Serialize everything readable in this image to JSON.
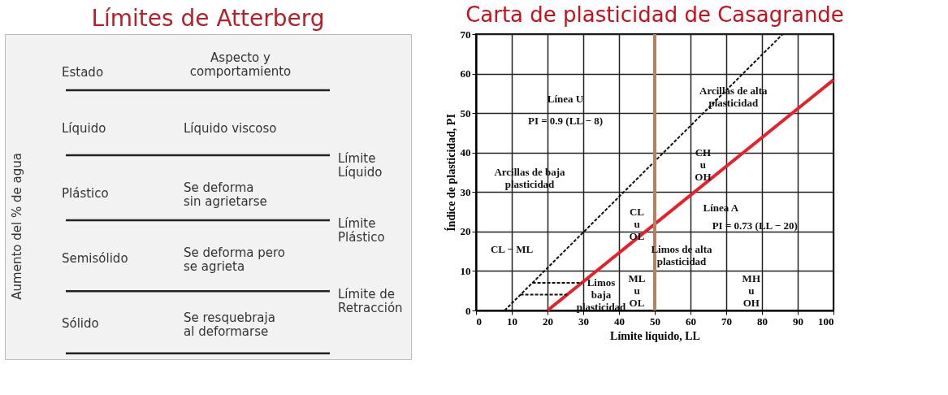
{
  "chart_data": [
    {
      "type": "other",
      "title": "Límites de Atterberg",
      "annotations": [
        "Estado",
        "Aspecto y\ncomportamiento",
        "Líquido",
        "Líquido viscoso",
        "Plástico",
        "Se deforma\nsin agrietarse",
        "Semisólido",
        "Se deforma pero\nse agrieta",
        "Sólido",
        "Se resquebraja\nal deformarse",
        "Límite\nLíquido",
        "Límite\nPlástico",
        "Límite de\nRetracción",
        "Aumento del % de agua"
      ]
    },
    {
      "type": "line",
      "title": "Carta de plasticidad de Casagrande",
      "xlabel": "Límite líquido, LL",
      "ylabel": "Índice de plasticidad, PI",
      "xlim": [
        0,
        100
      ],
      "xticks": [
        0,
        10,
        20,
        30,
        40,
        50,
        60,
        70,
        80,
        90,
        100
      ],
      "ylim": [
        0,
        70
      ],
      "yticks": [
        0,
        10,
        20,
        30,
        40,
        50,
        60,
        70
      ],
      "grid": true,
      "series": [
        {
          "color": "#e8202a",
          "x": [
            20,
            100
          ],
          "values": [
            0,
            58.4
          ],
          "line_style": "solid"
        },
        {
          "color": "#111111",
          "x": [
            8,
            85.8
          ],
          "values": [
            0,
            70
          ],
          "line_style": "dashed"
        },
        {
          "color": "#111111",
          "x": [
            15.8,
            29.6
          ],
          "values": [
            7,
            7
          ],
          "line_style": "dashed"
        },
        {
          "color": "#111111",
          "x": [
            12.4,
            25.5
          ],
          "values": [
            4,
            4
          ],
          "line_style": "dashed"
        }
      ],
      "ref_lines": [
        {
          "axis": "x",
          "value": 50,
          "color": "#b5825f"
        }
      ],
      "annotations": [
        "Línea U",
        "PI = 0.9 (LL − 8)",
        "Arcillas de baja\nplasticidad",
        "Arcillas de alta\nplasticidad",
        "CL − ML",
        "Limos\nbaja\nplasticidad",
        "CL\nu\nOL",
        "ML\nu\nOL",
        "CH\nu\nOH",
        "MH\nu\nOH",
        "Limos de alta\nplasticidad",
        "Línea A",
        "PI = 0.73 (LL − 20)"
      ]
    }
  ]
}
